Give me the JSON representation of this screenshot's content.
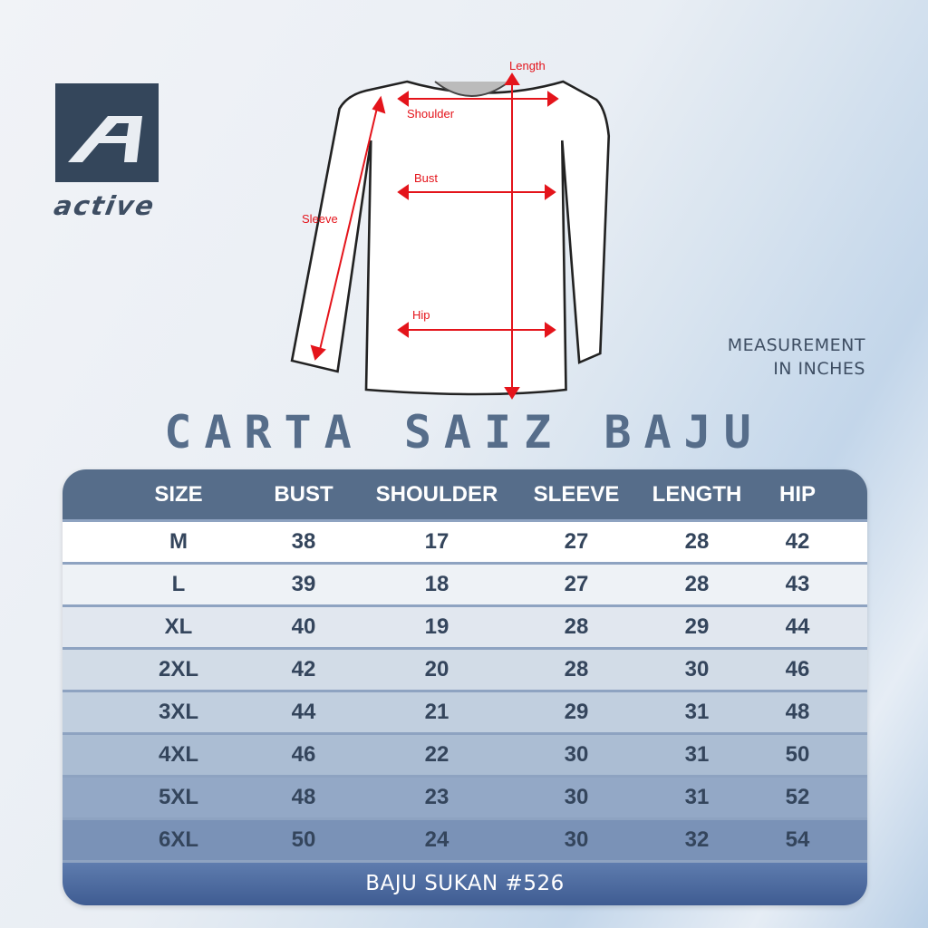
{
  "brand": {
    "name": "ACTIVE",
    "logo_letter": "A"
  },
  "diagram_labels": {
    "length": "Length",
    "shoulder": "Shoulder",
    "bust": "Bust",
    "sleeve": "Sleeve",
    "hip": "Hip"
  },
  "measurement_note": {
    "line1": "MEASUREMENT",
    "line2": "IN INCHES"
  },
  "title": "CARTA SAIZ BAJU",
  "table": {
    "headers": [
      "SIZE",
      "BUST",
      "SHOULDER",
      "SLEEVE",
      "LENGTH",
      "HIP"
    ],
    "rows": [
      [
        "M",
        "38",
        "17",
        "27",
        "28",
        "42"
      ],
      [
        "L",
        "39",
        "18",
        "27",
        "28",
        "43"
      ],
      [
        "XL",
        "40",
        "19",
        "28",
        "29",
        "44"
      ],
      [
        "2XL",
        "42",
        "20",
        "28",
        "30",
        "46"
      ],
      [
        "3XL",
        "44",
        "21",
        "29",
        "31",
        "48"
      ],
      [
        "4XL",
        "46",
        "22",
        "30",
        "31",
        "50"
      ],
      [
        "5XL",
        "48",
        "23",
        "30",
        "31",
        "52"
      ],
      [
        "6XL",
        "50",
        "24",
        "30",
        "32",
        "54"
      ]
    ],
    "footer": "BAJU SUKAN #526"
  },
  "colors": {
    "header": "#566d8a",
    "arrow": "#e4141b",
    "dark": "#34465b"
  }
}
